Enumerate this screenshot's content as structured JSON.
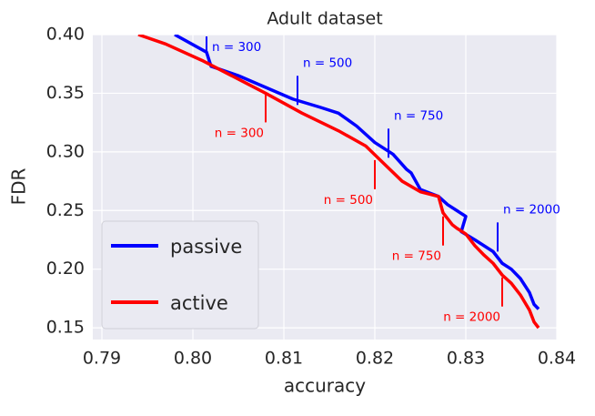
{
  "chart_data": {
    "type": "line",
    "title": "Adult dataset",
    "x_label": "accuracy",
    "y_label": "FDR",
    "xlim": [
      0.789,
      0.84
    ],
    "ylim": [
      0.14,
      0.4
    ],
    "xticks": [
      0.79,
      {
        "value": 0.8,
        "label": "0.80"
      },
      0.81,
      0.82,
      0.83,
      0.84
    ],
    "yticks": [
      0.15,
      {
        "value": 0.2,
        "label": "0.20"
      },
      0.25,
      {
        "value": 0.3,
        "label": "0.30"
      },
      0.35,
      {
        "value": 0.4,
        "label": "0.40"
      }
    ],
    "grid": true,
    "legend": "lower left",
    "series": [
      {
        "name": "passive",
        "color": "#0000ff",
        "x": [
          0.798,
          0.8015,
          0.802,
          0.805,
          0.808,
          0.811,
          0.814,
          0.816,
          0.818,
          0.82,
          0.822,
          0.8235,
          0.824,
          0.825,
          0.827,
          0.828,
          0.829,
          0.83,
          0.8295,
          0.831,
          0.833,
          0.834,
          0.835,
          0.836,
          0.837,
          0.8375,
          0.838
        ],
        "values": [
          0.4,
          0.385,
          0.373,
          0.365,
          0.355,
          0.345,
          0.338,
          0.333,
          0.322,
          0.308,
          0.298,
          0.285,
          0.282,
          0.268,
          0.262,
          0.255,
          0.25,
          0.245,
          0.232,
          0.225,
          0.215,
          0.205,
          0.2,
          0.192,
          0.18,
          0.17,
          0.166
        ],
        "annotations": [
          {
            "text": "n = 300",
            "x": 0.8015,
            "y": 0.385
          },
          {
            "text": "n = 500",
            "x": 0.8115,
            "y": 0.34
          },
          {
            "text": "n = 750",
            "x": 0.8215,
            "y": 0.295
          },
          {
            "text": "n = 2000",
            "x": 0.8335,
            "y": 0.215
          }
        ]
      },
      {
        "name": "active",
        "color": "#ff0000",
        "x": [
          0.794,
          0.797,
          0.801,
          0.805,
          0.808,
          0.812,
          0.816,
          0.819,
          0.821,
          0.823,
          0.825,
          0.827,
          0.8275,
          0.8285,
          0.829,
          0.83,
          0.831,
          0.832,
          0.833,
          0.834,
          0.835,
          0.836,
          0.837,
          0.8375,
          0.838
        ],
        "values": [
          0.4,
          0.392,
          0.378,
          0.362,
          0.35,
          0.333,
          0.318,
          0.305,
          0.29,
          0.275,
          0.266,
          0.262,
          0.248,
          0.238,
          0.235,
          0.23,
          0.22,
          0.212,
          0.205,
          0.195,
          0.188,
          0.178,
          0.165,
          0.155,
          0.15
        ],
        "annotations": [
          {
            "text": "n = 300",
            "x": 0.808,
            "y": 0.35
          },
          {
            "text": "n = 500",
            "x": 0.82,
            "y": 0.293
          },
          {
            "text": "n = 750",
            "x": 0.8275,
            "y": 0.245
          },
          {
            "text": "n = 2000",
            "x": 0.834,
            "y": 0.193
          }
        ]
      }
    ]
  }
}
